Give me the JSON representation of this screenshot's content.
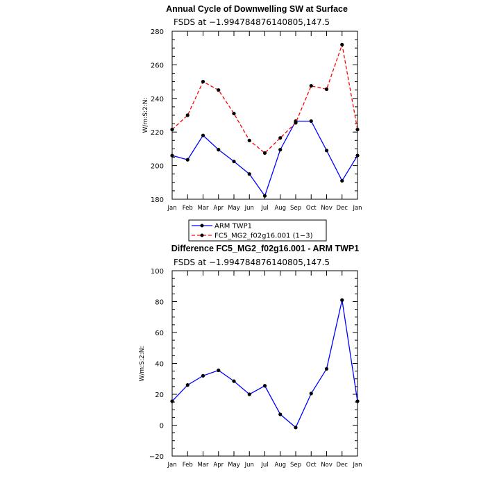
{
  "chart_data": [
    {
      "type": "line",
      "title": "Annual Cycle of Downwelling SW at Surface",
      "subtitle": "FSDS at −1.994784876140805,147.5",
      "xlabel": "",
      "ylabel": "W/m:S:2:N:",
      "categories": [
        "Jan",
        "Feb",
        "Mar",
        "Apr",
        "May",
        "Jun",
        "Jul",
        "Aug",
        "Sep",
        "Oct",
        "Nov",
        "Dec",
        "Jan"
      ],
      "ylim": [
        180,
        280
      ],
      "yticks": [
        180,
        200,
        220,
        240,
        260,
        280
      ],
      "series": [
        {
          "name": "ARM TWP1",
          "color": "#0000ff",
          "dashed": false,
          "values": [
            206,
            203.5,
            218,
            209.5,
            202.5,
            195,
            182,
            209.5,
            226.5,
            226.5,
            209,
            191,
            206
          ]
        },
        {
          "name": "FC5_MG2_f02g16.001 (1−3)",
          "color": "#ff0000",
          "dashed": true,
          "values": [
            221.5,
            230,
            250,
            245,
            231,
            215,
            207.5,
            216.5,
            225.5,
            247.5,
            245.5,
            272,
            221.5
          ]
        }
      ],
      "legend": "below"
    },
    {
      "type": "line",
      "title": "Difference FC5_MG2_f02g16.001 - ARM TWP1",
      "subtitle": "FSDS at −1.994784876140805,147.5",
      "xlabel": "",
      "ylabel": "W/m:S:2:N:",
      "categories": [
        "Jan",
        "Feb",
        "Mar",
        "Apr",
        "May",
        "Jun",
        "Jul",
        "Aug",
        "Sep",
        "Oct",
        "Nov",
        "Dec",
        "Jan"
      ],
      "ylim": [
        -20,
        100
      ],
      "yticks": [
        -20,
        0,
        20,
        40,
        60,
        80,
        100
      ],
      "series": [
        {
          "color": "#0000ff",
          "dashed": false,
          "values": [
            15.5,
            26,
            32,
            35.5,
            28.5,
            20,
            25.5,
            7,
            -1.5,
            20.5,
            36.5,
            81,
            15.5
          ]
        }
      ]
    }
  ]
}
